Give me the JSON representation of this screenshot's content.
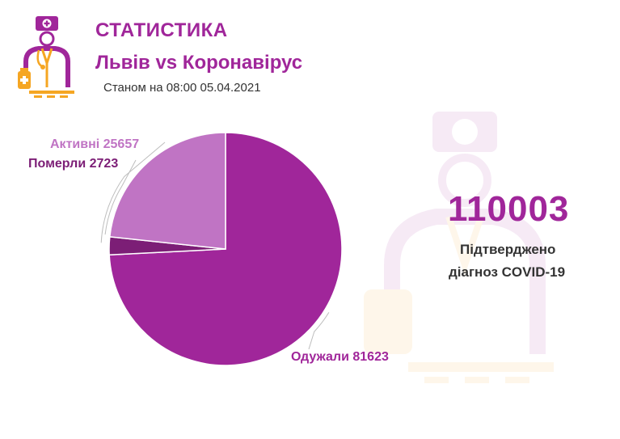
{
  "header": {
    "title": "СТАТИСТИКА",
    "subtitle": "Львів vs Коронавірус",
    "date": "Станом на 08:00 05.04.2021"
  },
  "summary": {
    "total": "110003",
    "caption_line1": "Підтверджено",
    "caption_line2": "діагноз COVID-19"
  },
  "colors": {
    "accent": "#a0269a",
    "recovered": "#a0269a",
    "active": "#c074c4",
    "deaths": "#7c1e76",
    "logo_orange": "#f5a623"
  },
  "chart_data": {
    "type": "pie",
    "slices": [
      {
        "label": "Одужали",
        "value": 81623,
        "color": "#a0269a",
        "display": "Одужали 81623"
      },
      {
        "label": "Померли",
        "value": 2723,
        "color": "#7c1e76",
        "display": "Померли 2723"
      },
      {
        "label": "Активні",
        "value": 25657,
        "color": "#c074c4",
        "display": "Активні 25657"
      }
    ],
    "start": "12 o'clock",
    "direction": "clockwise"
  }
}
